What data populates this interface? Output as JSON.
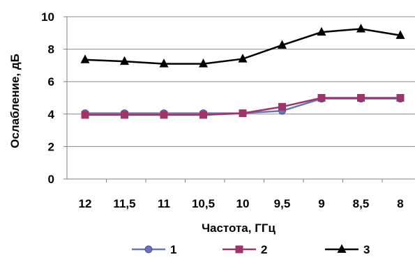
{
  "chart_data": {
    "type": "line",
    "xlabel": "Частота, ГГц",
    "ylabel": "Ослабление, дБ",
    "categories": [
      "12",
      "11,5",
      "11",
      "10,5",
      "10",
      "9,5",
      "9",
      "8,5",
      "8"
    ],
    "ylim": [
      0,
      10
    ],
    "yticks": [
      "0",
      "2",
      "4",
      "6",
      "8",
      "10"
    ],
    "grid": true,
    "legend_position": "bottom",
    "series": [
      {
        "name": "1",
        "color": "#6a74b4",
        "marker": "circle",
        "values": [
          4.05,
          4.05,
          4.05,
          4.05,
          4.05,
          4.2,
          4.95,
          4.95,
          4.95
        ]
      },
      {
        "name": "2",
        "color": "#a0336a",
        "marker": "square",
        "values": [
          3.95,
          3.95,
          3.95,
          3.95,
          4.05,
          4.45,
          5.0,
          5.0,
          5.0
        ]
      },
      {
        "name": "3",
        "color": "#000000",
        "marker": "triangle",
        "values": [
          7.35,
          7.25,
          7.1,
          7.1,
          7.4,
          8.25,
          9.05,
          9.25,
          8.85
        ]
      }
    ]
  }
}
